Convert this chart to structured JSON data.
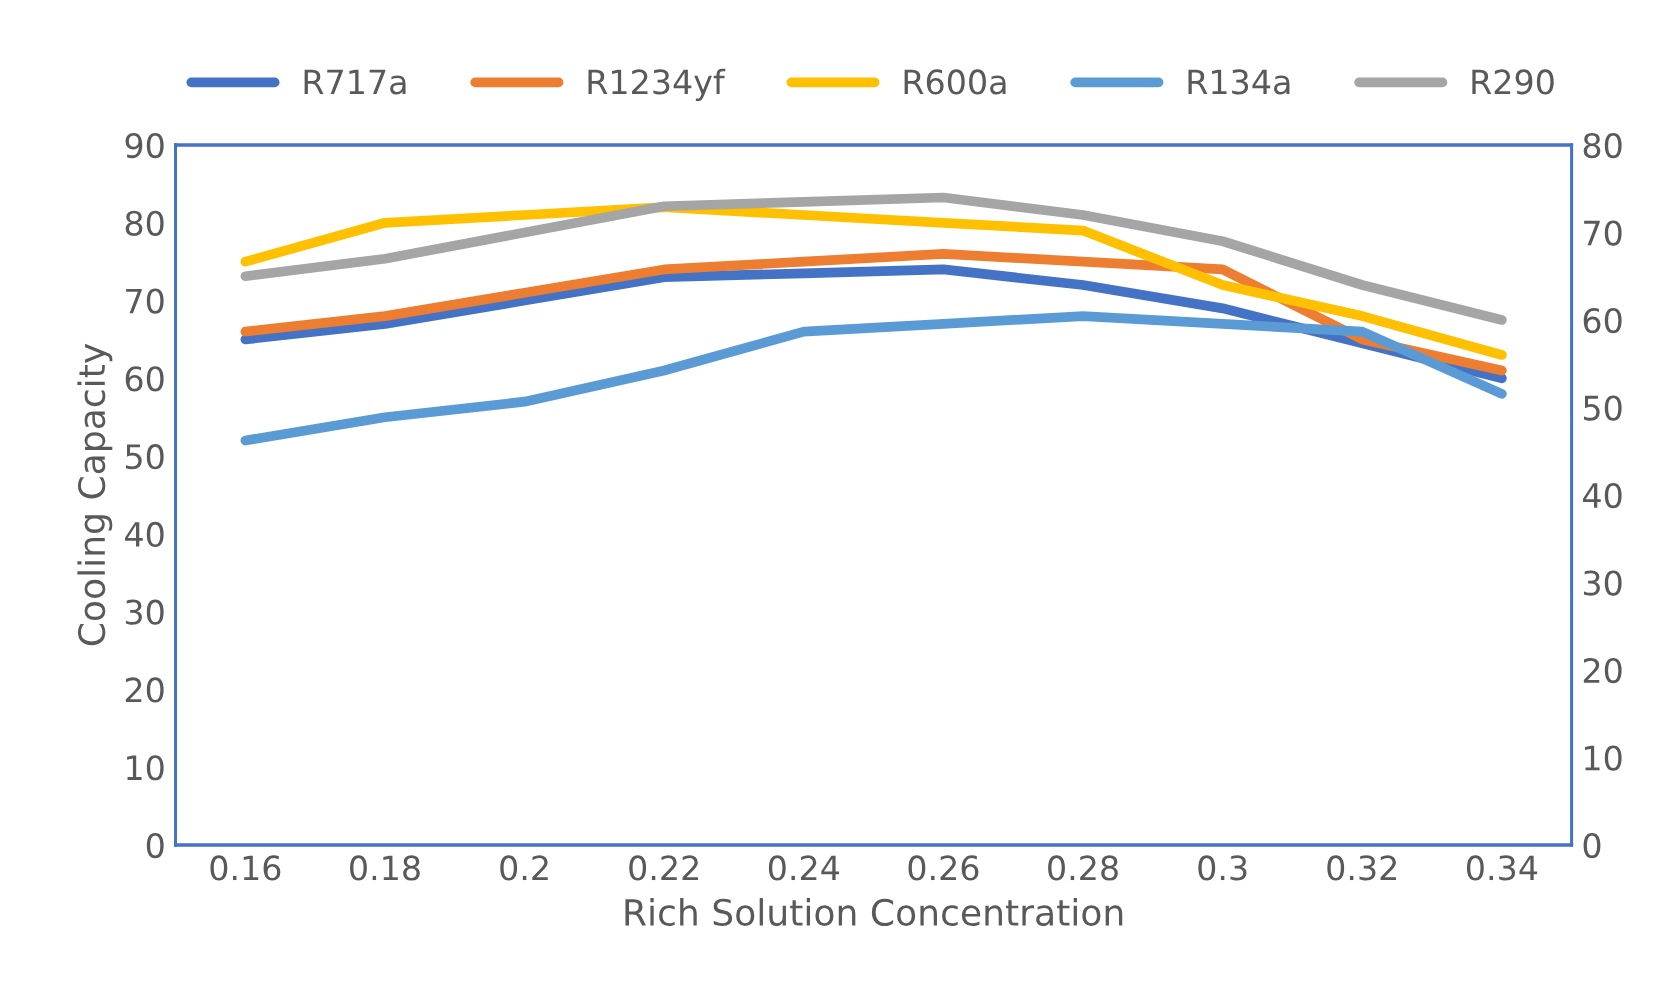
{
  "chart_data": {
    "type": "line",
    "xlabel": "Rich Solution Concentration",
    "ylabel": "Cooling Capacity",
    "categories": [
      "0.16",
      "0.18",
      "0.2",
      "0.22",
      "0.24",
      "0.26",
      "0.28",
      "0.3",
      "0.32",
      "0.34"
    ],
    "series": [
      {
        "name": "R717a",
        "color": "#4472c4",
        "values": [
          65,
          67,
          70,
          73,
          73.5,
          74,
          72,
          69,
          64.5,
          60
        ]
      },
      {
        "name": "R1234yf",
        "color": "#ed7d31",
        "values": [
          66,
          68,
          71,
          74,
          75,
          76,
          75,
          74,
          65,
          61
        ]
      },
      {
        "name": "R600a",
        "color": "#ffc000",
        "values": [
          75,
          80,
          81,
          82,
          81,
          80,
          79,
          72,
          68,
          63
        ]
      },
      {
        "name": "R134a",
        "color": "#5b9bd5",
        "values": [
          52,
          55,
          57,
          61,
          66,
          67,
          68,
          67,
          66,
          58
        ]
      },
      {
        "name": "R290",
        "color": "#a5a5a5",
        "axis": "y2",
        "values": [
          65,
          67,
          70,
          73,
          73.5,
          74,
          72,
          69,
          64,
          60
        ]
      }
    ],
    "ylim": [
      0,
      90
    ],
    "yticks": [
      0,
      10,
      20,
      30,
      40,
      50,
      60,
      70,
      80,
      90
    ],
    "y2lim": [
      0,
      80
    ],
    "y2ticks": [
      0,
      10,
      20,
      30,
      40,
      50,
      60,
      70,
      80
    ],
    "legend": "top",
    "grid": false,
    "marker": "none",
    "line_style": "solid"
  }
}
